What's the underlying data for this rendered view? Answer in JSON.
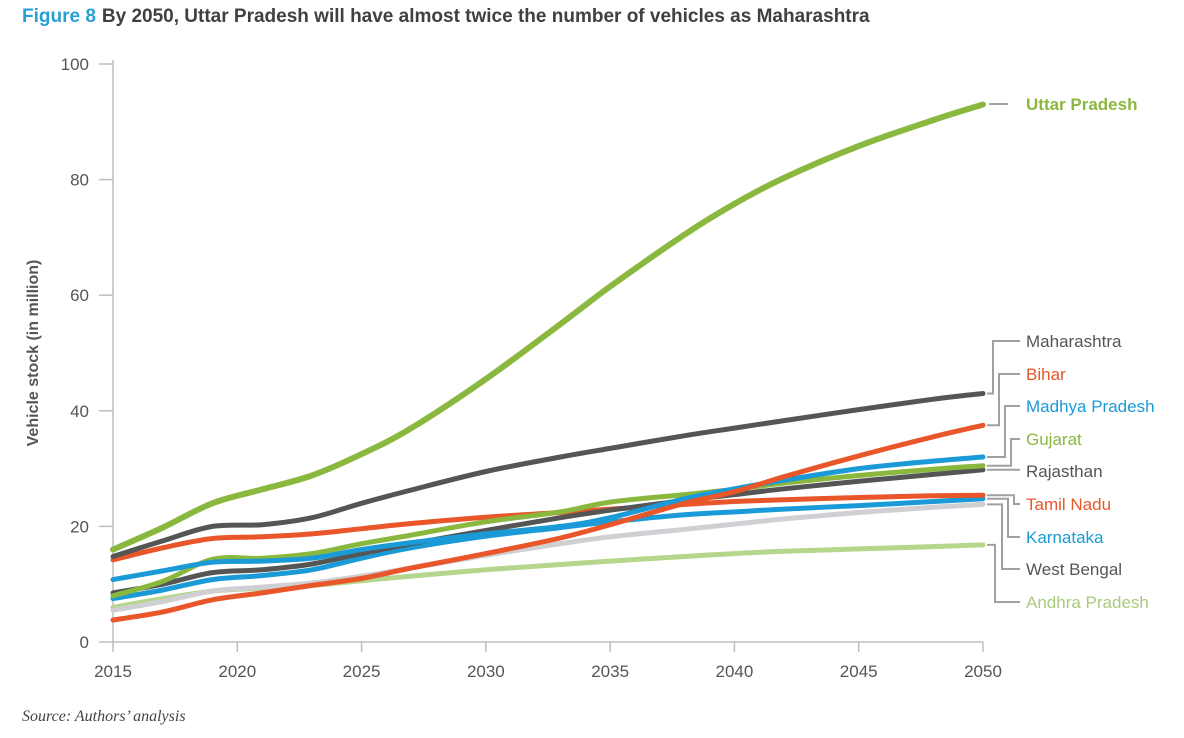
{
  "figure": {
    "number_label": "Figure 8",
    "title": "By 2050, Uttar Pradesh will have almost twice the number of vehicles as Maharashtra",
    "source": "Source: Authors’ analysis"
  },
  "colors": {
    "figure_label": "#2a9fd6",
    "title_text": "#404040",
    "axis": "#bdbdbd",
    "tick_text": "#555555",
    "leader": "#a0a0a0"
  },
  "chart_data": {
    "type": "line",
    "ylabel": "Vehicle stock (in million)",
    "xlabel": "",
    "xlim": [
      2015,
      2050
    ],
    "ylim": [
      0,
      100
    ],
    "x_ticks": [
      2015,
      2020,
      2025,
      2030,
      2035,
      2040,
      2045,
      2050
    ],
    "y_ticks": [
      0,
      20,
      40,
      60,
      80,
      100
    ],
    "grid": false,
    "legend": "right end labels",
    "x": [
      2015,
      2017,
      2019,
      2021,
      2023,
      2025,
      2027,
      2030,
      2033,
      2035,
      2038,
      2040,
      2042,
      2045,
      2048,
      2050
    ],
    "series": [
      {
        "name": "Uttar Pradesh",
        "color": "#8ab83f",
        "label_color": "#8ab83f",
        "width": 6,
        "values": [
          16.0,
          19.8,
          24.0,
          26.4,
          28.8,
          32.5,
          37.0,
          45.5,
          55.0,
          61.5,
          70.5,
          75.8,
          80.3,
          85.8,
          90.3,
          93.0
        ]
      },
      {
        "name": "Maharashtra",
        "color": "#555555",
        "label_color": "#555555",
        "width": 5,
        "values": [
          14.8,
          17.5,
          20.0,
          20.3,
          21.5,
          24.0,
          26.3,
          29.5,
          32.0,
          33.5,
          35.7,
          37.0,
          38.3,
          40.2,
          42.0,
          43.0
        ]
      },
      {
        "name": "Bihar",
        "color": "#e8562a",
        "label_color": "#e8562a",
        "width": 5,
        "values": [
          3.8,
          5.2,
          7.3,
          8.5,
          9.8,
          11.0,
          12.8,
          15.3,
          18.0,
          20.3,
          24.0,
          26.0,
          28.6,
          32.2,
          35.5,
          37.5
        ]
      },
      {
        "name": "Madhya Pradesh",
        "color": "#1a9ad6",
        "label_color": "#1a9ad6",
        "width": 5,
        "values": [
          10.8,
          12.3,
          13.8,
          14.0,
          14.5,
          16.0,
          17.2,
          18.7,
          20.0,
          21.5,
          24.8,
          26.5,
          28.0,
          30.0,
          31.3,
          32.0
        ]
      },
      {
        "name": "Gujarat",
        "color": "#8ab83f",
        "label_color": "#8ab83f",
        "width": 5,
        "values": [
          8.0,
          10.5,
          14.3,
          14.5,
          15.3,
          17.0,
          18.5,
          20.8,
          22.5,
          24.2,
          25.5,
          26.4,
          27.5,
          28.8,
          29.9,
          30.5
        ]
      },
      {
        "name": "Rajasthan",
        "color": "#555555",
        "label_color": "#555555",
        "width": 5,
        "values": [
          8.5,
          10.0,
          12.0,
          12.5,
          13.5,
          15.3,
          17.0,
          19.3,
          21.5,
          22.8,
          24.5,
          25.5,
          26.5,
          27.8,
          29.0,
          29.8
        ]
      },
      {
        "name": "Tamil Nadu",
        "color": "#e8562a",
        "label_color": "#e8562a",
        "width": 5,
        "values": [
          14.2,
          16.3,
          17.9,
          18.2,
          18.7,
          19.6,
          20.5,
          21.6,
          22.4,
          23.0,
          23.8,
          24.3,
          24.6,
          25.0,
          25.3,
          25.4
        ]
      },
      {
        "name": "Karnataka",
        "color": "#1a9ad6",
        "label_color": "#1a9ad6",
        "width": 5,
        "values": [
          7.5,
          9.0,
          10.8,
          11.5,
          12.5,
          14.5,
          16.3,
          18.3,
          19.8,
          20.8,
          22.0,
          22.5,
          23.0,
          23.6,
          24.3,
          24.8
        ]
      },
      {
        "name": "West Bengal",
        "color": "#d0d0d4",
        "label_color": "#555555",
        "width": 5,
        "values": [
          5.5,
          7.0,
          8.8,
          9.5,
          10.2,
          11.4,
          12.8,
          15.0,
          17.0,
          18.2,
          19.5,
          20.4,
          21.3,
          22.4,
          23.3,
          23.8
        ]
      },
      {
        "name": "Andhra Pradesh",
        "color": "#b5d68c",
        "label_color": "#a8cc7c",
        "width": 5,
        "values": [
          6.0,
          7.5,
          8.8,
          9.3,
          9.8,
          10.6,
          11.4,
          12.5,
          13.4,
          14.0,
          14.8,
          15.3,
          15.7,
          16.1,
          16.5,
          16.8
        ]
      }
    ]
  }
}
